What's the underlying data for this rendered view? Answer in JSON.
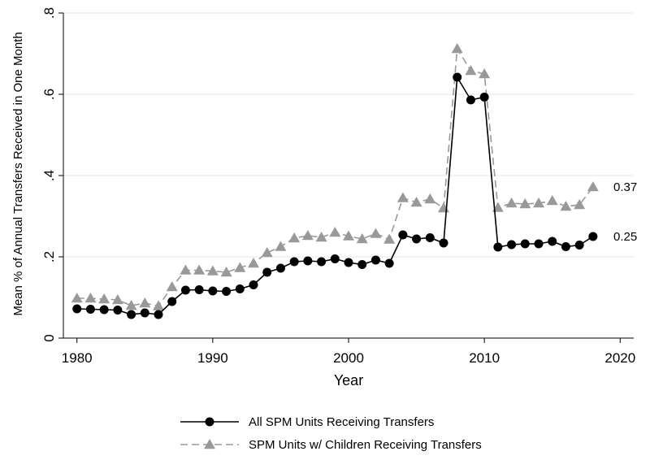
{
  "chart_data": {
    "type": "line",
    "title": "",
    "xlabel": "Year",
    "ylabel": "Mean % of Annual Transfers Received in One Month",
    "xlim": [
      1979,
      2021
    ],
    "ylim": [
      0,
      0.8
    ],
    "x_ticks": [
      1980,
      1990,
      2000,
      2010,
      2020
    ],
    "x_tick_labels": [
      "1980",
      "1990",
      "2000",
      "2010",
      "2020"
    ],
    "y_ticks": [
      0,
      0.2,
      0.4,
      0.6,
      0.8
    ],
    "y_tick_labels": [
      "0",
      ".2",
      ".4",
      ".6",
      ".8"
    ],
    "grid": "horizontal",
    "legend_position": "bottom",
    "x": [
      1980,
      1981,
      1982,
      1983,
      1984,
      1985,
      1986,
      1987,
      1988,
      1989,
      1990,
      1991,
      1992,
      1993,
      1994,
      1995,
      1996,
      1997,
      1998,
      1999,
      2000,
      2001,
      2002,
      2003,
      2004,
      2005,
      2006,
      2007,
      2008,
      2009,
      2010,
      2011,
      2012,
      2013,
      2014,
      2015,
      2016,
      2017,
      2018
    ],
    "series": [
      {
        "name": "All SPM Units Receiving Transfers",
        "color": "#000000",
        "line_style": "solid",
        "marker": "circle",
        "end_label": "0.25",
        "values": [
          0.072,
          0.071,
          0.07,
          0.069,
          0.058,
          0.062,
          0.058,
          0.09,
          0.118,
          0.119,
          0.116,
          0.115,
          0.121,
          0.131,
          0.162,
          0.172,
          0.188,
          0.19,
          0.188,
          0.195,
          0.186,
          0.181,
          0.192,
          0.184,
          0.254,
          0.244,
          0.247,
          0.234,
          0.642,
          0.586,
          0.593,
          0.224,
          0.23,
          0.232,
          0.232,
          0.238,
          0.225,
          0.229,
          0.25
        ]
      },
      {
        "name": "SPM Units w/ Children Receiving Transfers",
        "color": "#999999",
        "line_style": "dashed",
        "marker": "triangle",
        "end_label": "0.37",
        "values": [
          0.098,
          0.098,
          0.096,
          0.094,
          0.08,
          0.086,
          0.079,
          0.126,
          0.167,
          0.167,
          0.165,
          0.162,
          0.173,
          0.184,
          0.21,
          0.225,
          0.246,
          0.252,
          0.248,
          0.26,
          0.251,
          0.244,
          0.257,
          0.243,
          0.345,
          0.334,
          0.342,
          0.32,
          0.712,
          0.658,
          0.65,
          0.321,
          0.332,
          0.33,
          0.332,
          0.338,
          0.324,
          0.328,
          0.372
        ]
      }
    ]
  }
}
